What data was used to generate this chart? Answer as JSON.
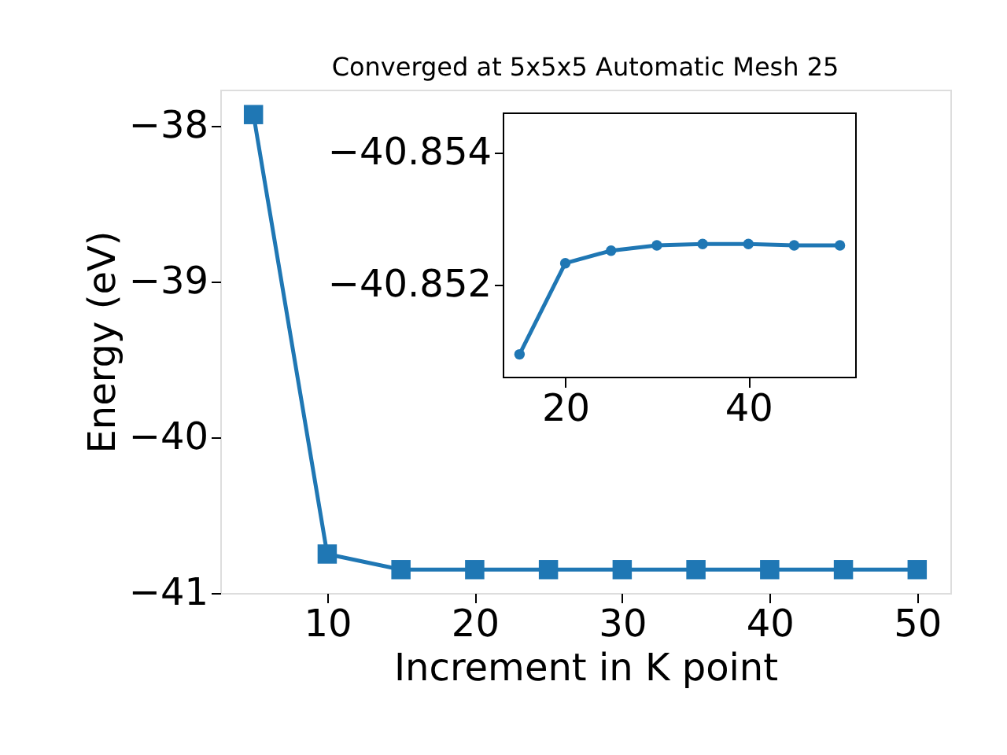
{
  "chart_data": [
    {
      "type": "line",
      "title": "Converged at 5x5x5 Automatic Mesh 25",
      "xlabel": "Increment in K point",
      "ylabel": "Energy (eV)",
      "x": [
        5,
        10,
        15,
        20,
        25,
        30,
        35,
        40,
        45,
        50
      ],
      "series": [
        {
          "color": "#1f77b4",
          "values": [
            -37.93,
            -40.75,
            -40.85,
            -40.85,
            -40.85,
            -40.85,
            -40.85,
            -40.85,
            -40.85,
            -40.85
          ]
        }
      ],
      "xlim": [
        2.75,
        52.25
      ],
      "ylim": [
        -41.0,
        -37.77
      ],
      "xticks": [
        10,
        20,
        30,
        40,
        50
      ],
      "yticks": [
        -41,
        -40,
        -39,
        -38
      ],
      "marker": "square",
      "grid": false
    },
    {
      "type": "line",
      "x": [
        15,
        20,
        25,
        30,
        35,
        40,
        45,
        50
      ],
      "series": [
        {
          "color": "#1f77b4",
          "values": [
            -40.85095,
            -40.85233,
            -40.85252,
            -40.8526,
            -40.85262,
            -40.85262,
            -40.8526,
            -40.8526
          ]
        }
      ],
      "xlim": [
        13.25,
        51.75
      ],
      "ylim": [
        -40.8506,
        -40.8546
      ],
      "xticks": [
        20,
        40
      ],
      "yticks": [
        -40.854,
        -40.852
      ],
      "marker": "circle",
      "grid": false
    }
  ]
}
